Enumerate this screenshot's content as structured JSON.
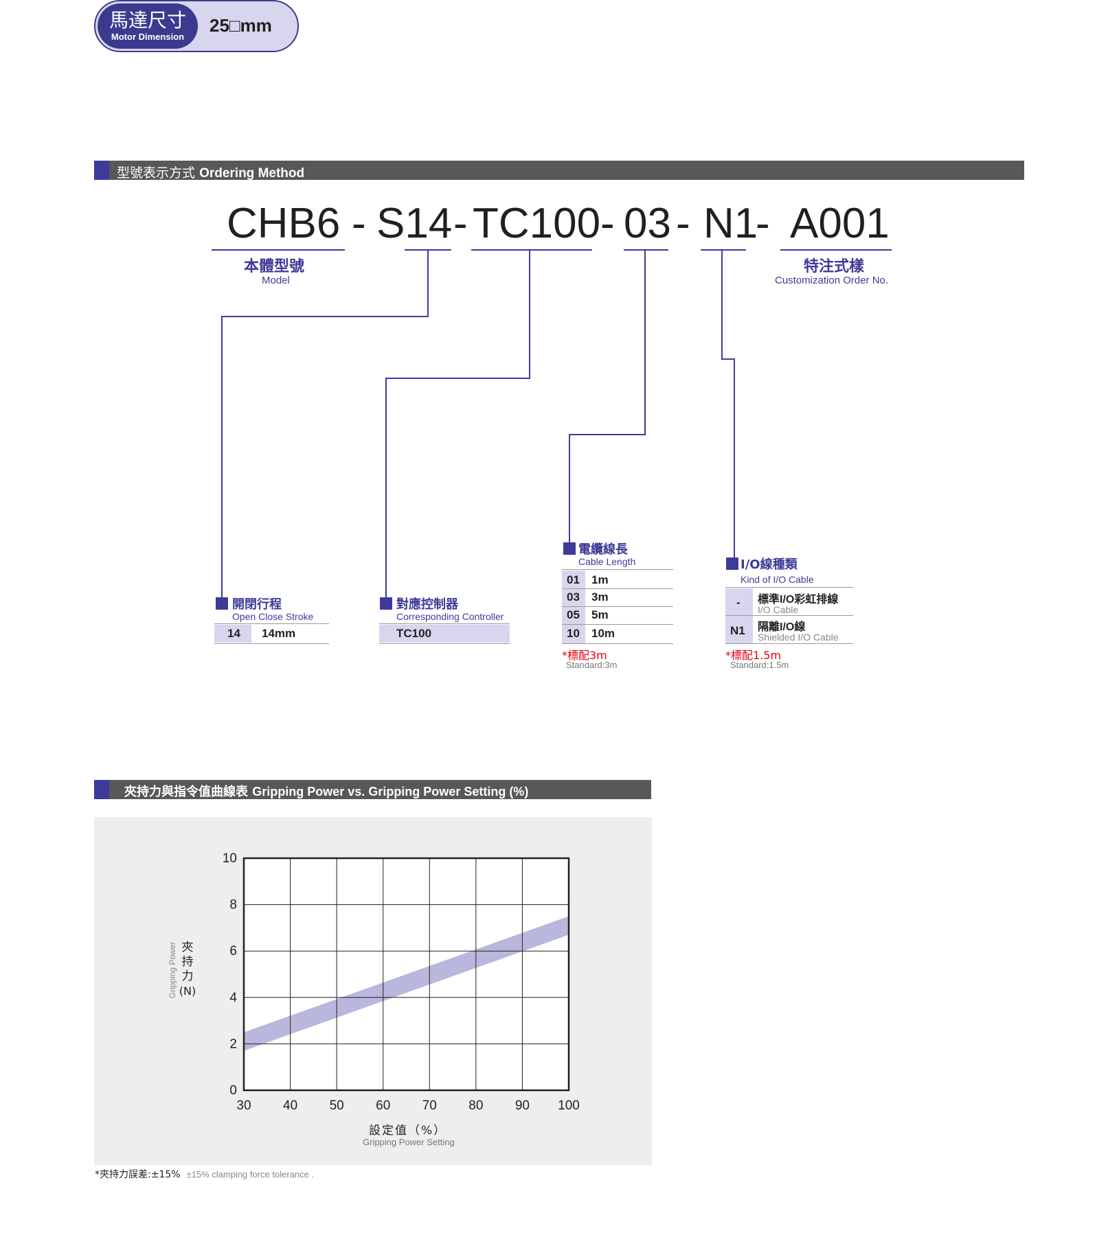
{
  "badge": {
    "zh": "馬達尺寸",
    "en": "Motor Dimension",
    "value": "25□mm"
  },
  "ordering": {
    "bar_zh": "型號表示方式",
    "bar_en": "Ordering Method",
    "code": {
      "model": "CHB6",
      "dash": "-",
      "stroke": "S14",
      "controller": "TC100",
      "cable": "03",
      "io": "N1",
      "custom": "A001"
    },
    "model_label": {
      "zh": "本體型號",
      "en": "Model"
    },
    "custom_label": {
      "zh": "特注式樣",
      "en": "Customization Order No."
    },
    "stroke": {
      "zh": "開閉行程",
      "en": "Open Close Stroke",
      "rows": [
        {
          "code": "14",
          "value": "14mm"
        }
      ]
    },
    "controller": {
      "zh": "對應控制器",
      "en": "Corresponding Controller",
      "rows": [
        {
          "value": "TC100"
        }
      ]
    },
    "cable": {
      "zh": "電纜線長",
      "en": "Cable Length",
      "rows": [
        {
          "code": "01",
          "value": "1m"
        },
        {
          "code": "03",
          "value": "3m"
        },
        {
          "code": "05",
          "value": "5m"
        },
        {
          "code": "10",
          "value": "10m"
        }
      ],
      "note": "*標配3m",
      "note_en": "Standard:3m"
    },
    "io": {
      "zh": "I/O線種類",
      "en": "Kind of I/O Cable",
      "rows": [
        {
          "code": "-",
          "zh": "標準I/O彩虹排線",
          "en": "I/O Cable"
        },
        {
          "code": "N1",
          "zh": "隔離I/O線",
          "en": "Shielded I/O Cable"
        }
      ],
      "note": "*標配1.5m",
      "note_en": "Standard:1.5m"
    }
  },
  "grip": {
    "bar_zh": "夾持力與指令值曲線表",
    "bar_en": "Gripping Power vs. Gripping Power Setting (%)",
    "ylabel_zh": [
      "夾",
      "持",
      "力",
      "(N)"
    ],
    "ylabel_en": "Gripping Power",
    "xlabel_zh": "設定值（%）",
    "xlabel_en": "Gripping Power Setting",
    "footnote_zh": "*夾持力誤差:±15%",
    "footnote_en": "±15% clamping force tolerance ."
  },
  "chart_data": {
    "type": "area",
    "x": [
      30,
      100
    ],
    "series": [
      {
        "lower": [
          1.7,
          6.7
        ],
        "upper": [
          2.5,
          7.5
        ]
      }
    ],
    "xticks": [
      30,
      40,
      50,
      60,
      70,
      80,
      90,
      100
    ],
    "yticks": [
      0,
      2,
      4,
      6,
      8,
      10
    ],
    "xlim": [
      30,
      100
    ],
    "ylim": [
      0,
      10
    ],
    "grid": true,
    "band_color": "#b9b7db"
  }
}
